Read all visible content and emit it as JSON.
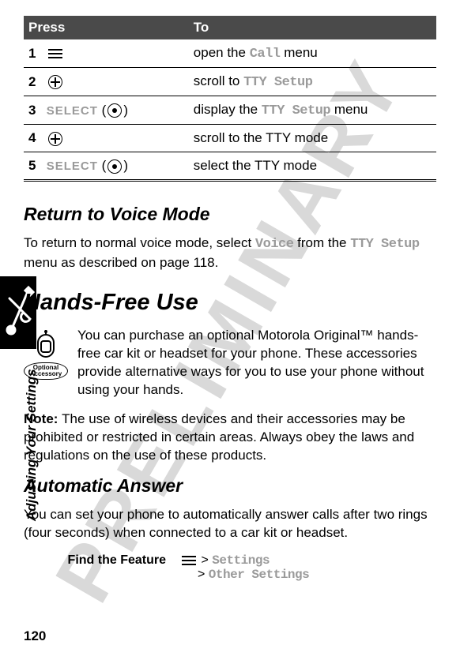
{
  "watermark": "PRELIMINARY",
  "table": {
    "headers": [
      "Press",
      "To"
    ],
    "rows": [
      {
        "num": "1",
        "press_type": "menu-icon",
        "press_text": "",
        "to_pre": "open the ",
        "to_mono": "Call",
        "to_post": " menu"
      },
      {
        "num": "2",
        "press_type": "nav-icon",
        "press_text": "",
        "to_pre": "scroll to ",
        "to_mono": "TTY Setup",
        "to_post": ""
      },
      {
        "num": "3",
        "press_type": "select",
        "press_text": "SELECT",
        "to_pre": "display the ",
        "to_mono": "TTY Setup",
        "to_post": " menu"
      },
      {
        "num": "4",
        "press_type": "nav-icon",
        "press_text": "",
        "to_pre": "scroll to the TTY mode",
        "to_mono": "",
        "to_post": ""
      },
      {
        "num": "5",
        "press_type": "select",
        "press_text": "SELECT",
        "to_pre": "select the TTY mode",
        "to_mono": "",
        "to_post": ""
      }
    ]
  },
  "sections": {
    "return_heading": "Return to Voice Mode",
    "return_p_pre": "To return to normal voice mode, select ",
    "return_p_mono1": "Voice",
    "return_p_mid": " from the ",
    "return_p_mono2": "TTY Setup",
    "return_p_post": " menu as described on page 118.",
    "hands_heading": "Hands-Free Use",
    "accessory_label": "Optional Accessory",
    "hands_p1": "You can purchase an optional Motorola Original™ hands-free car kit or headset for your phone. These accessories provide alternative ways for you to use your phone without using your hands.",
    "note_label": "Note: ",
    "note_body": "The use of wireless devices and their accessories may be prohibited or restricted in certain areas. Always obey the laws and regulations on the use of these products.",
    "auto_heading": "Automatic Answer",
    "auto_p": "You can set your phone to automatically answer calls after two rings (four seconds) when connected to a car kit or headset.",
    "find_label": "Find the Feature",
    "find_path1_pre": "> ",
    "find_path1": "Settings",
    "find_path2_pre": "> ",
    "find_path2": "Other Settings"
  },
  "side_label": "Adjusting Your Settings",
  "page_number": "120"
}
